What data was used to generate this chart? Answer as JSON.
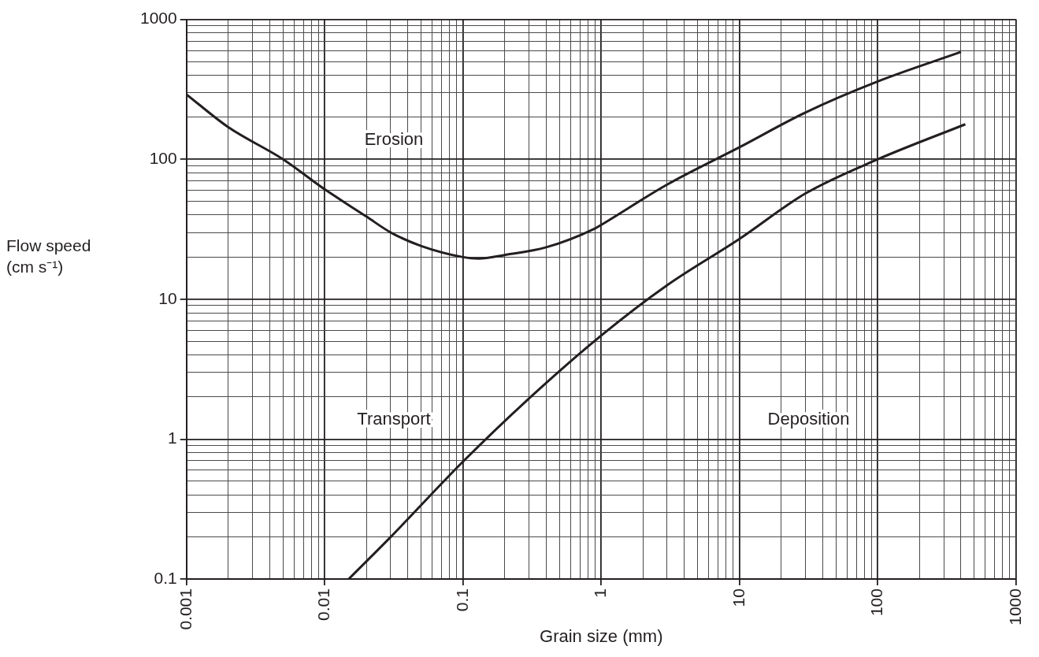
{
  "chart_data": {
    "type": "line",
    "xlabel": "Grain size (mm)",
    "ylabel": "Flow speed (cm s⁻¹)",
    "annotations": [
      "Erosion",
      "Transport",
      "Deposition"
    ],
    "series": [
      {
        "color": "#231f20",
        "x": [
          0.001,
          0.002,
          0.005,
          0.01,
          0.02,
          0.03,
          0.05,
          0.1,
          0.13,
          0.2,
          0.4,
          0.9,
          1,
          3,
          10,
          30,
          100,
          400
        ],
        "values": [
          291,
          170,
          100,
          61,
          39,
          30,
          24,
          20,
          19.5,
          20.7,
          23.5,
          32,
          34,
          66,
          122,
          216,
          360,
          585
        ]
      },
      {
        "color": "#231f20",
        "x": [
          0.0149,
          0.03,
          0.1,
          0.3,
          1,
          3,
          10,
          30,
          100,
          430
        ],
        "values": [
          0.1,
          0.2,
          0.69,
          1.95,
          5.5,
          12.6,
          27,
          57,
          100,
          178
        ]
      }
    ],
    "xlim": [
      0.001,
      1000
    ],
    "ylim": [
      0.1,
      1000
    ],
    "xticks": [
      0.001,
      {
        "value": 0.002,
        "label": null
      },
      {
        "value": 0.003,
        "label": null
      },
      {
        "value": 0.004,
        "label": null
      },
      {
        "value": 0.005,
        "label": null
      },
      {
        "value": 0.006,
        "label": null
      },
      {
        "value": 0.007,
        "label": null
      },
      {
        "value": 0.008,
        "label": null
      },
      {
        "value": 0.009,
        "label": null
      },
      0.01,
      {
        "value": 0.02,
        "label": null
      },
      {
        "value": 0.03,
        "label": null
      },
      {
        "value": 0.04,
        "label": null
      },
      {
        "value": 0.05,
        "label": null
      },
      {
        "value": 0.06,
        "label": null
      },
      {
        "value": 0.07,
        "label": null
      },
      {
        "value": 0.08,
        "label": null
      },
      {
        "value": 0.09,
        "label": null
      },
      0.1,
      {
        "value": 0.2,
        "label": null
      },
      {
        "value": 0.3,
        "label": null
      },
      {
        "value": 0.4,
        "label": null
      },
      {
        "value": 0.5,
        "label": null
      },
      {
        "value": 0.6,
        "label": null
      },
      {
        "value": 0.7,
        "label": null
      },
      {
        "value": 0.8,
        "label": null
      },
      {
        "value": 0.9,
        "label": null
      },
      1,
      {
        "value": 2,
        "label": null
      },
      {
        "value": 3,
        "label": null
      },
      {
        "value": 4,
        "label": null
      },
      {
        "value": 5,
        "label": null
      },
      {
        "value": 6,
        "label": null
      },
      {
        "value": 7,
        "label": null
      },
      {
        "value": 8,
        "label": null
      },
      {
        "value": 9,
        "label": null
      },
      10,
      {
        "value": 20,
        "label": null
      },
      {
        "value": 30,
        "label": null
      },
      {
        "value": 40,
        "label": null
      },
      {
        "value": 50,
        "label": null
      },
      {
        "value": 60,
        "label": null
      },
      {
        "value": 70,
        "label": null
      },
      {
        "value": 80,
        "label": null
      },
      {
        "value": 90,
        "label": null
      },
      100,
      {
        "value": 200,
        "label": null
      },
      {
        "value": 300,
        "label": null
      },
      {
        "value": 400,
        "label": null
      },
      {
        "value": 500,
        "label": null
      },
      {
        "value": 600,
        "label": null
      },
      {
        "value": 700,
        "label": null
      },
      {
        "value": 800,
        "label": null
      },
      {
        "value": 900,
        "label": null
      },
      1000
    ],
    "yticks": [
      0.1,
      {
        "value": 0.2,
        "label": null
      },
      {
        "value": 0.3,
        "label": null
      },
      {
        "value": 0.4,
        "label": null
      },
      {
        "value": 0.5,
        "label": null
      },
      {
        "value": 0.6,
        "label": null
      },
      {
        "value": 0.7,
        "label": null
      },
      {
        "value": 0.8,
        "label": null
      },
      {
        "value": 0.9,
        "label": null
      },
      1,
      {
        "value": 2,
        "label": null
      },
      {
        "value": 3,
        "label": null
      },
      {
        "value": 4,
        "label": null
      },
      {
        "value": 5,
        "label": null
      },
      {
        "value": 6,
        "label": null
      },
      {
        "value": 7,
        "label": null
      },
      {
        "value": 8,
        "label": null
      },
      {
        "value": 9,
        "label": null
      },
      10,
      {
        "value": 20,
        "label": null
      },
      {
        "value": 30,
        "label": null
      },
      {
        "value": 40,
        "label": null
      },
      {
        "value": 50,
        "label": null
      },
      {
        "value": 60,
        "label": null
      },
      {
        "value": 70,
        "label": null
      },
      {
        "value": 80,
        "label": null
      },
      {
        "value": 90,
        "label": null
      },
      100,
      {
        "value": 200,
        "label": null
      },
      {
        "value": 300,
        "label": null
      },
      {
        "value": 400,
        "label": null
      },
      {
        "value": 500,
        "label": null
      },
      {
        "value": 600,
        "label": null
      },
      {
        "value": 700,
        "label": null
      },
      {
        "value": 800,
        "label": null
      },
      {
        "value": 900,
        "label": null
      },
      1000
    ],
    "log": "xy",
    "grid": true,
    "legend": false,
    "marker": "none",
    "line_style": "solid"
  }
}
